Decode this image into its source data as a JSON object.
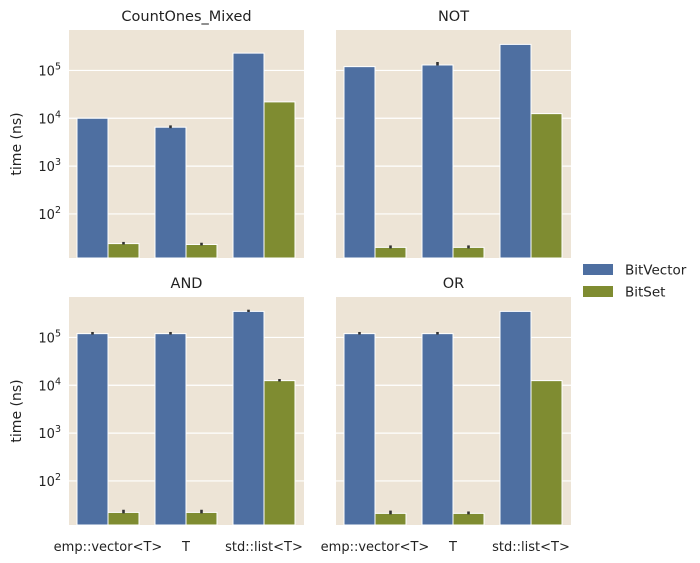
{
  "chart_data": {
    "type": "bar",
    "yscale": "log",
    "ylabel": "time (ns)",
    "ylim": [
      12,
      700000
    ],
    "y_ticks": [
      {
        "value": 100,
        "base": "10",
        "exp": "2"
      },
      {
        "value": 1000,
        "base": "10",
        "exp": "3"
      },
      {
        "value": 10000,
        "base": "10",
        "exp": "4"
      },
      {
        "value": 100000,
        "base": "10",
        "exp": "5"
      }
    ],
    "categories": [
      "emp::vector<T>",
      "T",
      "std::list<T>"
    ],
    "legend": {
      "placement": "center-right",
      "entries": [
        {
          "name": "BitVector",
          "color": "#4E6FA1"
        },
        {
          "name": "BitSet",
          "color": "#7F8C31"
        }
      ]
    },
    "panels": [
      {
        "title": "CountOnes_Mixed",
        "series": [
          {
            "name": "BitVector",
            "values": [
              10000,
              6500,
              230000
            ],
            "err": [
              null,
              [
                6200,
                7100
              ],
              null
            ]
          },
          {
            "name": "BitSet",
            "values": [
              24,
              23,
              22000
            ],
            "err": [
              [
                23,
                26
              ],
              [
                22,
                25
              ],
              null
            ]
          }
        ]
      },
      {
        "title": "NOT",
        "series": [
          {
            "name": "BitVector",
            "values": [
              120000,
              130000,
              350000
            ],
            "err": [
              null,
              [
                127000,
                150000
              ],
              null
            ]
          },
          {
            "name": "BitSet",
            "values": [
              20,
              20,
              12500
            ],
            "err": [
              [
                19,
                22
              ],
              [
                19,
                22
              ],
              null
            ]
          }
        ]
      },
      {
        "title": "AND",
        "series": [
          {
            "name": "BitVector",
            "values": [
              120000,
              120000,
              350000
            ],
            "err": [
              [
                115000,
                130000
              ],
              [
                115000,
                130000
              ],
              [
                340000,
                380000
              ]
            ]
          },
          {
            "name": "BitSet",
            "values": [
              22,
              22,
              12500
            ],
            "err": [
              [
                21,
                25
              ],
              [
                21,
                25
              ],
              [
                12000,
                13500
              ]
            ]
          }
        ]
      },
      {
        "title": "OR",
        "series": [
          {
            "name": "BitVector",
            "values": [
              120000,
              120000,
              350000
            ],
            "err": [
              [
                115000,
                130000
              ],
              [
                115000,
                130000
              ],
              null
            ]
          },
          {
            "name": "BitSet",
            "values": [
              21,
              21,
              12500
            ],
            "err": [
              [
                20,
                24
              ],
              [
                20,
                23
              ],
              null
            ]
          }
        ]
      }
    ]
  }
}
